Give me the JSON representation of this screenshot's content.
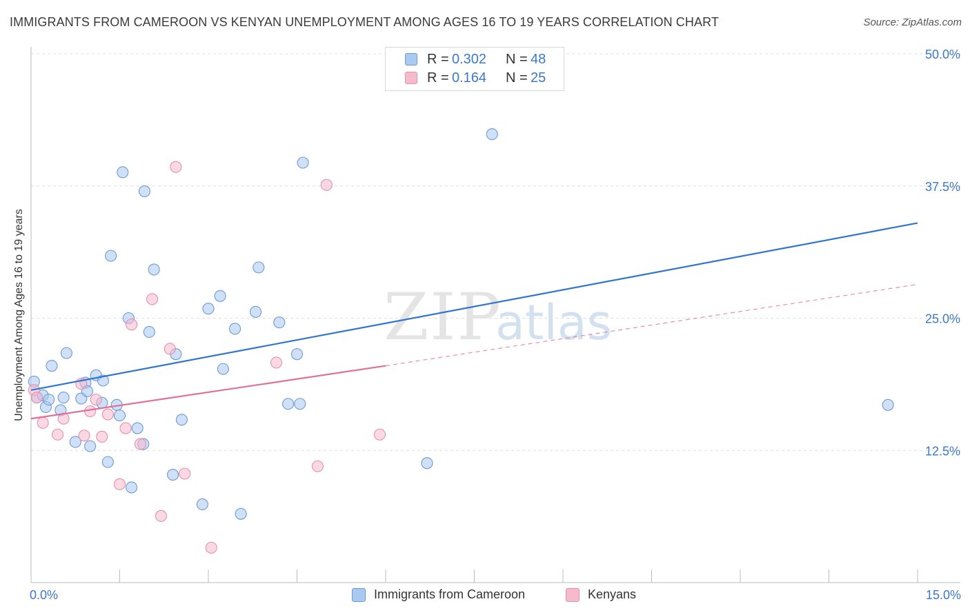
{
  "header": {
    "title": "IMMIGRANTS FROM CAMEROON VS KENYAN UNEMPLOYMENT AMONG AGES 16 TO 19 YEARS CORRELATION CHART",
    "source": "Source: ZipAtlas.com"
  },
  "watermark": {
    "part1": "ZIP",
    "part2": "atlas"
  },
  "stats": [
    {
      "r_label": "R =",
      "r_value": "0.302",
      "n_label": "N =",
      "n_value": "48"
    },
    {
      "r_label": "R =",
      "r_value": "0.164",
      "n_label": "N =",
      "n_value": "25"
    }
  ],
  "legend": {
    "cameroon_label": "Immigrants from Cameroon",
    "kenyan_label": "Kenyans"
  },
  "colors": {
    "cameroon_fill": "#a9c9f0",
    "cameroon_stroke": "#6b9ad6",
    "cameroon_line": "#2e74d0",
    "kenyan_fill": "#f6bacd",
    "kenyan_stroke": "#e58fac",
    "kenyan_line": "#e0709a",
    "tick_label": "#3b78c7",
    "grid": "#dddddd"
  },
  "chart_data": {
    "type": "scatter",
    "title": "IMMIGRANTS FROM CAMEROON VS KENYAN UNEMPLOYMENT AMONG AGES 16 TO 19 YEARS CORRELATION CHART",
    "xlabel": "",
    "ylabel": "Unemployment Among Ages 16 to 19 years",
    "xlim": [
      0,
      15
    ],
    "ylim": [
      0,
      50
    ],
    "x_tick_labels": [
      "0.0%",
      "15.0%"
    ],
    "y_ticks": [
      12.5,
      25.0,
      37.5,
      50.0
    ],
    "y_tick_labels": [
      "12.5%",
      "25.0%",
      "37.5%",
      "50.0%"
    ],
    "series": [
      {
        "name": "Immigrants from Cameroon",
        "r": 0.302,
        "n": 48,
        "trend": {
          "x0": 0.0,
          "y0": 18.2,
          "x1": 15.0,
          "y1": 34.0,
          "style": "solid"
        },
        "points": [
          [
            0.05,
            19.0
          ],
          [
            0.1,
            17.5
          ],
          [
            0.2,
            17.7
          ],
          [
            0.25,
            16.6
          ],
          [
            0.3,
            17.3
          ],
          [
            0.35,
            20.5
          ],
          [
            0.5,
            16.3
          ],
          [
            0.55,
            17.5
          ],
          [
            0.6,
            21.7
          ],
          [
            0.75,
            13.3
          ],
          [
            0.85,
            17.4
          ],
          [
            0.92,
            18.9
          ],
          [
            0.95,
            18.1
          ],
          [
            1.0,
            12.9
          ],
          [
            1.1,
            19.6
          ],
          [
            1.2,
            17.0
          ],
          [
            1.22,
            19.1
          ],
          [
            1.3,
            11.4
          ],
          [
            1.35,
            30.9
          ],
          [
            1.45,
            16.8
          ],
          [
            1.5,
            15.8
          ],
          [
            1.55,
            38.8
          ],
          [
            1.65,
            25.0
          ],
          [
            1.7,
            9.0
          ],
          [
            1.8,
            14.6
          ],
          [
            1.9,
            13.1
          ],
          [
            1.92,
            37.0
          ],
          [
            2.0,
            23.7
          ],
          [
            2.08,
            29.6
          ],
          [
            2.45,
            21.6
          ],
          [
            2.4,
            10.2
          ],
          [
            2.55,
            15.4
          ],
          [
            2.9,
            7.4
          ],
          [
            3.0,
            25.9
          ],
          [
            3.2,
            27.1
          ],
          [
            3.25,
            20.2
          ],
          [
            3.45,
            24.0
          ],
          [
            3.55,
            6.5
          ],
          [
            3.8,
            25.6
          ],
          [
            3.85,
            29.8
          ],
          [
            4.2,
            24.6
          ],
          [
            4.35,
            16.9
          ],
          [
            4.5,
            21.6
          ],
          [
            4.55,
            16.9
          ],
          [
            4.6,
            39.7
          ],
          [
            6.7,
            11.3
          ],
          [
            7.8,
            42.4
          ],
          [
            14.5,
            16.8
          ]
        ]
      },
      {
        "name": "Kenyans",
        "r": 0.164,
        "n": 25,
        "trend": {
          "x0": 0.0,
          "y0": 15.5,
          "x1": 6.0,
          "y1": 20.5,
          "style": "solid",
          "extended_x1": 15.0,
          "extended_y1": 28.2,
          "extended_style": "dashed"
        },
        "points": [
          [
            0.05,
            18.2
          ],
          [
            0.1,
            17.5
          ],
          [
            0.2,
            15.1
          ],
          [
            0.45,
            14.0
          ],
          [
            0.55,
            15.5
          ],
          [
            0.85,
            18.8
          ],
          [
            0.9,
            13.9
          ],
          [
            1.0,
            16.2
          ],
          [
            1.1,
            17.3
          ],
          [
            1.2,
            13.8
          ],
          [
            1.3,
            15.9
          ],
          [
            1.5,
            9.3
          ],
          [
            1.6,
            14.6
          ],
          [
            1.7,
            24.4
          ],
          [
            1.85,
            13.1
          ],
          [
            2.05,
            26.8
          ],
          [
            2.2,
            6.3
          ],
          [
            2.35,
            22.1
          ],
          [
            2.45,
            39.3
          ],
          [
            2.6,
            10.3
          ],
          [
            3.05,
            3.3
          ],
          [
            4.15,
            20.8
          ],
          [
            4.85,
            11.0
          ],
          [
            5.0,
            37.6
          ],
          [
            5.9,
            14.0
          ]
        ]
      }
    ]
  }
}
